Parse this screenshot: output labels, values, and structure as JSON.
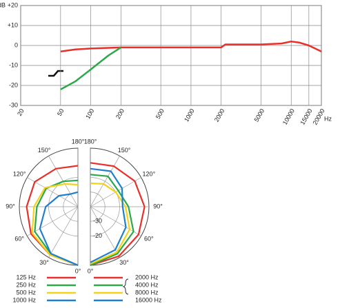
{
  "chart_data": [
    {
      "type": "line",
      "xlabel": "Hz",
      "ylabel": "dB",
      "xscale": "log",
      "grid": true,
      "xlim": [
        20,
        20000
      ],
      "xticks": [
        20,
        50,
        100,
        200,
        500,
        1000,
        2000,
        5000,
        10000,
        15000,
        20000
      ],
      "ylim": [
        -30,
        20
      ],
      "yticks": [
        {
          "value": 20,
          "label": "+20"
        },
        {
          "value": 10,
          "label": "+10"
        },
        0,
        -10,
        -20,
        -30
      ],
      "series": [
        {
          "color": "#e8302a",
          "x": [
            50,
            70,
            100,
            200,
            500,
            1000,
            2000,
            2200,
            3000,
            5000,
            8000,
            10000,
            12000,
            15000,
            20000
          ],
          "values": [
            -3,
            -2,
            -1.5,
            -1,
            -1,
            -1,
            -1,
            0.5,
            0.5,
            0.5,
            1,
            2,
            1.5,
            0,
            -3
          ]
        },
        {
          "color": "#2aa84a",
          "x": [
            50,
            70,
            100,
            150,
            200
          ],
          "values": [
            -22,
            -18,
            -12,
            -5,
            -1
          ]
        }
      ]
    },
    {
      "type": "polar",
      "rlim": [
        -40,
        0
      ],
      "rticks": [
        -20,
        -30
      ],
      "theta": [
        0,
        30,
        60,
        90,
        120,
        150,
        180
      ],
      "thetaticks": [
        {
          "value": 0,
          "label": "0°"
        },
        {
          "value": 30,
          "label": "30°"
        },
        {
          "value": 60,
          "label": "60°"
        },
        {
          "value": 90,
          "label": "90°"
        },
        {
          "value": 120,
          "label": "120°"
        },
        {
          "value": 150,
          "label": "150°"
        },
        {
          "value": 180,
          "label": "180°"
        }
      ],
      "series": [
        {
          "name": "125 Hz",
          "side": "left",
          "color": "#e8302a",
          "values": [
            0,
            -2,
            -3,
            -5,
            -6,
            -10,
            -12
          ]
        },
        {
          "name": "250 Hz",
          "side": "left",
          "color": "#2aa84a",
          "values": [
            0,
            -3,
            -6,
            -12,
            -15,
            -20,
            -22
          ]
        },
        {
          "name": "500 Hz",
          "side": "left",
          "color": "#f2d21b",
          "values": [
            0,
            -2,
            -4,
            -10,
            -14,
            -22,
            -25
          ]
        },
        {
          "name": "1000 Hz",
          "side": "left",
          "color": "#1f7fcf",
          "values": [
            0,
            -3,
            -10,
            -18,
            -25,
            -30,
            -30
          ]
        },
        {
          "name": "2000 Hz",
          "side": "right",
          "color": "#e8302a",
          "values": [
            0,
            -1,
            -2,
            -3,
            -5,
            -8,
            -10
          ]
        },
        {
          "name": "4000 Hz",
          "side": "right",
          "color": "#2aa84a",
          "values": [
            0,
            -3,
            -6,
            -14,
            -18,
            -16,
            -18
          ]
        },
        {
          "name": "8000 Hz",
          "side": "right",
          "color": "#f2d21b",
          "values": [
            -1,
            -4,
            -9,
            -16,
            -20,
            -22,
            -24
          ]
        },
        {
          "name": "16000 Hz",
          "side": "right",
          "color": "#1f7fcf",
          "values": [
            -2,
            -6,
            -12,
            -18,
            -15,
            -12,
            -14
          ]
        }
      ]
    }
  ]
}
